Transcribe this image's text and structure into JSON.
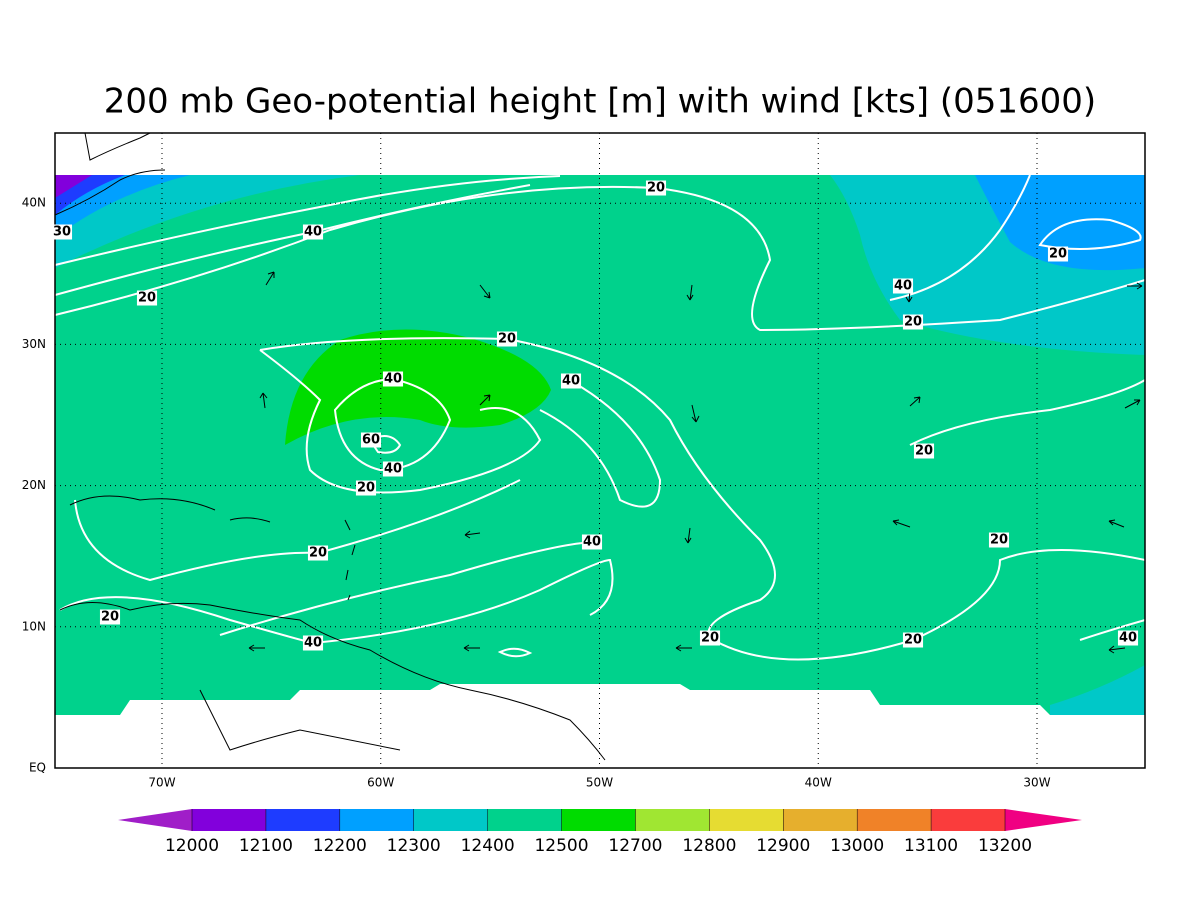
{
  "title": "200 mb Geo-potential height [m] with wind [kts] (051600)",
  "map": {
    "lon_labels": [
      "70W",
      "60W",
      "50W",
      "40W",
      "30W"
    ],
    "lat_labels": [
      "EQ",
      "10N",
      "20N",
      "30N",
      "40N"
    ],
    "contour_labels": [
      20,
      40,
      30,
      20,
      20,
      40,
      20,
      20,
      40,
      40,
      60,
      40,
      20,
      20,
      20,
      40,
      20,
      20,
      40,
      20,
      20,
      40
    ]
  },
  "colorbar": {
    "levels": [
      12000,
      12100,
      12200,
      12300,
      12400,
      12500,
      12700,
      12800,
      12900,
      13000,
      13100,
      13200
    ],
    "colors": [
      "#a01ec8",
      "#8200dc",
      "#1e3cff",
      "#00a0ff",
      "#00c8c8",
      "#00d28c",
      "#00dc00",
      "#a0e632",
      "#e6dc32",
      "#e6af2d",
      "#f08228",
      "#fa3c3c",
      "#f00082"
    ]
  }
}
